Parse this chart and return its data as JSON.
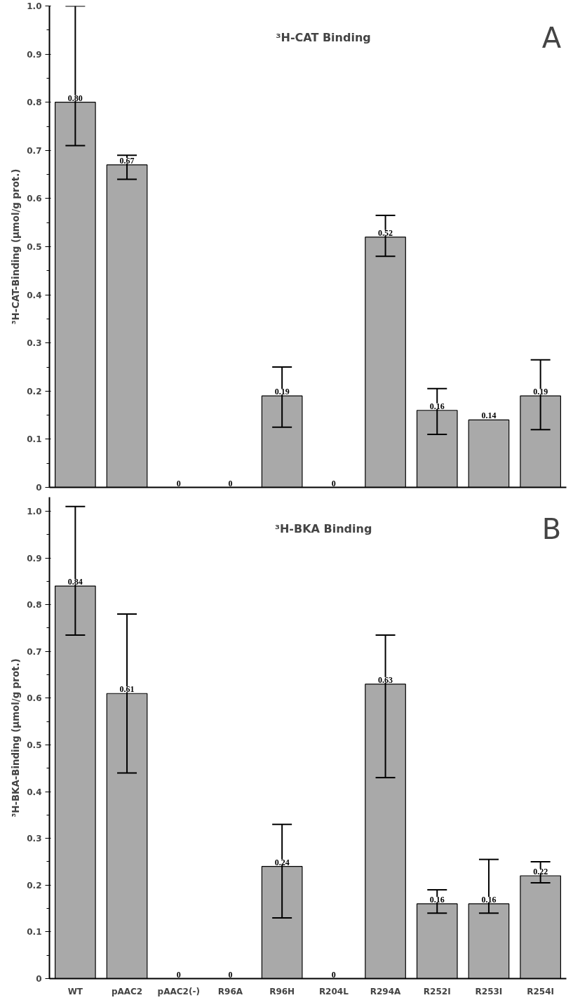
{
  "chart_data": [
    {
      "type": "bar",
      "title": "³H-CAT Binding",
      "ylabel": "³H-CAT-Binding (µmol/g prot.)",
      "annotations": [
        "A"
      ],
      "categories": [
        null,
        null,
        null,
        null,
        null,
        null,
        null,
        null,
        null,
        null
      ],
      "series": [
        {
          "color": "#a9a9a9",
          "values": [
            0.8,
            0.67,
            0,
            0,
            0.19,
            0,
            0.52,
            0.16,
            0.14,
            0.19
          ],
          "errors": [
            [
              0.71,
              1.0
            ],
            [
              0.64,
              0.69
            ],
            null,
            null,
            [
              0.125,
              0.25
            ],
            null,
            [
              0.48,
              0.565
            ],
            [
              0.11,
              0.205
            ],
            null,
            [
              0.12,
              0.265
            ]
          ],
          "value_labels": [
            "0.80",
            "0.67",
            "0",
            "0",
            "0.19",
            "0",
            "0.52",
            "0.16",
            "0.14",
            "0.19"
          ]
        }
      ],
      "ylim": [
        0,
        1.0
      ],
      "yticks": [
        0,
        {
          "value": 0.1,
          "label": "0.1"
        },
        {
          "value": 0.2,
          "label": "0.2"
        },
        {
          "value": 0.3,
          "label": "0.3"
        },
        {
          "value": 0.4,
          "label": "0.4"
        },
        {
          "value": 0.5,
          "label": "0.5"
        },
        {
          "value": 0.6,
          "label": "0.6"
        },
        {
          "value": 0.7,
          "label": "0.7"
        },
        {
          "value": 0.8,
          "label": "0.8"
        },
        {
          "value": 0.9,
          "label": "0.9"
        },
        {
          "value": 1.0,
          "label": "1.0"
        }
      ],
      "tick_labels": "y",
      "grid": false
    },
    {
      "type": "bar",
      "title": "³H-BKA Binding",
      "ylabel": "³H-BKA-Binding (µmol/g prot.)",
      "annotations": [
        "B"
      ],
      "categories": [
        "WT",
        "pAAC2",
        "pAAC2(-)",
        "R96A",
        "R96H",
        "R204L",
        "R294A",
        "R252I",
        "R253I",
        "R254I"
      ],
      "series": [
        {
          "color": "#a9a9a9",
          "values": [
            0.84,
            0.61,
            0,
            0,
            0.24,
            0,
            0.63,
            0.16,
            0.16,
            0.22
          ],
          "errors": [
            [
              0.735,
              1.01
            ],
            [
              0.44,
              0.78
            ],
            null,
            null,
            [
              0.13,
              0.33
            ],
            null,
            [
              0.43,
              0.735
            ],
            [
              0.14,
              0.19
            ],
            [
              0.14,
              0.255
            ],
            [
              0.205,
              0.25
            ]
          ],
          "value_labels": [
            "0.84",
            "0.61",
            "0",
            "0",
            "0.24",
            "0",
            "0.63",
            "0.16",
            "0.16",
            "0.22"
          ]
        }
      ],
      "ylim": [
        0,
        1.03
      ],
      "yticks": [
        0,
        {
          "value": 0.1,
          "label": "0.1"
        },
        {
          "value": 0.2,
          "label": "0.2"
        },
        {
          "value": 0.3,
          "label": "0.3"
        },
        {
          "value": 0.4,
          "label": "0.4"
        },
        {
          "value": 0.5,
          "label": "0.5"
        },
        {
          "value": 0.6,
          "label": "0.6"
        },
        {
          "value": 0.7,
          "label": "0.7"
        },
        {
          "value": 0.8,
          "label": "0.8"
        },
        {
          "value": 0.9,
          "label": "0.9"
        },
        {
          "value": 1.0,
          "label": "1.0"
        }
      ],
      "grid": false
    }
  ]
}
